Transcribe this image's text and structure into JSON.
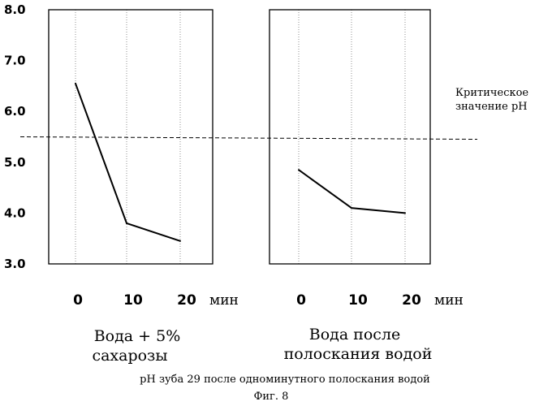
{
  "chart_data": {
    "type": "line",
    "ylim": [
      3.0,
      8.0
    ],
    "y_ticks": [
      "3.0",
      "4.0",
      "5.0",
      "6.0",
      "7.0",
      "8.0"
    ],
    "x_ticks": [
      "0",
      "10",
      "20"
    ],
    "x_unit": "мин",
    "grid": true,
    "reference_line": {
      "value": 5.5,
      "label_line1": "Критическое",
      "label_line2": "значение pH"
    },
    "panels": [
      {
        "title_line1": "Вода + 5%",
        "title_line2": "сахарозы",
        "x": [
          0,
          10,
          20
        ],
        "y": [
          6.55,
          3.8,
          3.45
        ]
      },
      {
        "title_line1": "Вода после",
        "title_line2": "полоскания водой",
        "x": [
          0,
          10,
          20
        ],
        "y": [
          4.85,
          4.1,
          4.0
        ]
      }
    ]
  },
  "caption": "pH зуба 29 после  одноминутного  полоскания водой",
  "figure_label": "Фиг. 8"
}
